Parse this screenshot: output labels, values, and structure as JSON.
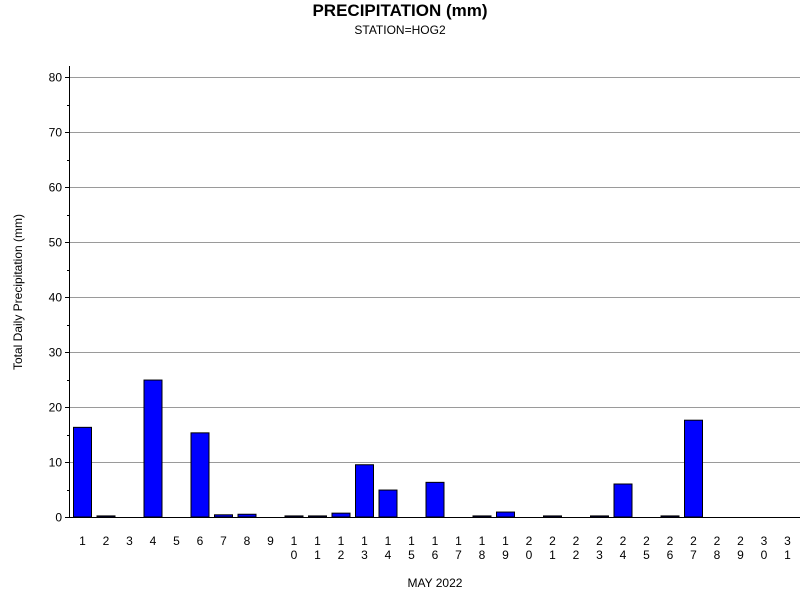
{
  "chart_data": {
    "type": "bar",
    "title": "PRECIPITATION (mm)",
    "subtitle": "STATION=HOG2",
    "xlabel": "MAY 2022",
    "ylabel": "Total Daily Precipitation (mm)",
    "ylim": [
      0,
      80
    ],
    "yticks": [
      0,
      10,
      20,
      30,
      40,
      50,
      60,
      70,
      80
    ],
    "grid": true,
    "categories": [
      "1",
      "2",
      "3",
      "4",
      "5",
      "6",
      "7",
      "8",
      "9",
      "10",
      "11",
      "12",
      "13",
      "14",
      "15",
      "16",
      "17",
      "18",
      "19",
      "20",
      "21",
      "22",
      "23",
      "24",
      "25",
      "26",
      "27",
      "28",
      "29",
      "30",
      "31"
    ],
    "values": [
      16.3,
      0.2,
      0,
      24.9,
      0,
      15.3,
      0.4,
      0.5,
      0,
      0.2,
      0.2,
      0.7,
      9.5,
      4.9,
      0,
      6.3,
      0,
      0.2,
      0.9,
      0,
      0.2,
      0,
      0.2,
      6.0,
      0,
      0.2,
      17.6,
      0,
      0,
      0,
      0
    ],
    "bar_color": "#0000ff"
  }
}
